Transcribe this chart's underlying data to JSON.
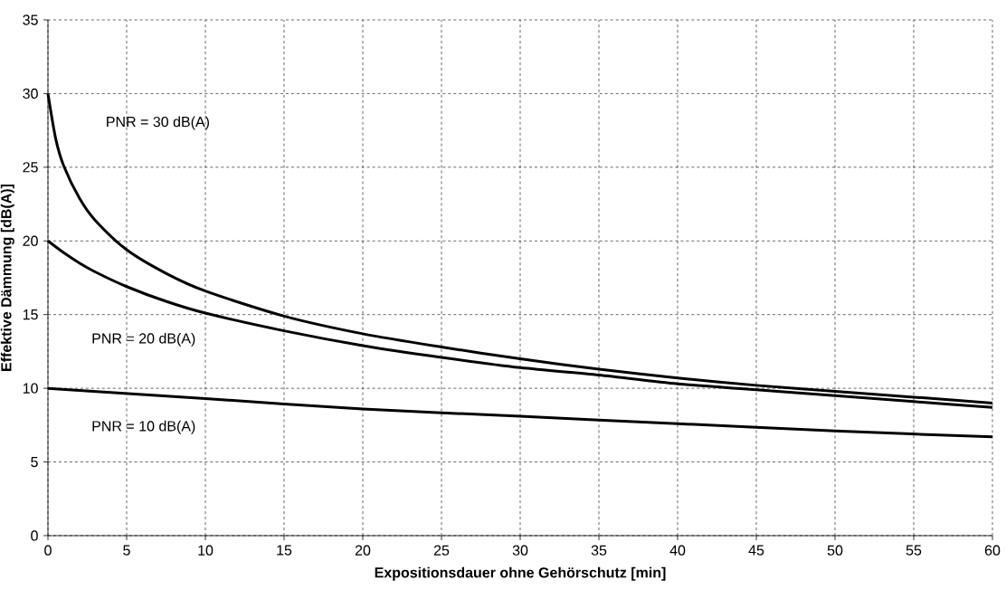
{
  "chart_data": {
    "type": "line",
    "xlabel": "Expositionsdauer ohne Gehörschutz [min]",
    "ylabel": "Effektive Dämmung [dB(A)]",
    "xlim": [
      0,
      60
    ],
    "ylim": [
      0,
      35
    ],
    "xticks": [
      0,
      5,
      10,
      15,
      20,
      25,
      30,
      35,
      40,
      45,
      50,
      55,
      60
    ],
    "yticks": [
      0,
      5,
      10,
      15,
      20,
      25,
      30,
      35
    ],
    "grid": true,
    "marker": "none",
    "line_style": "solid",
    "series": [
      {
        "color": "#000000",
        "x": [
          0,
          0.5,
          1,
          2,
          3,
          5,
          7.5,
          10,
          15,
          20,
          25,
          30,
          35,
          40,
          45,
          50,
          55,
          60
        ],
        "values": [
          30,
          26.9,
          25.1,
          22.9,
          21.4,
          19.4,
          17.8,
          16.6,
          14.9,
          13.7,
          12.8,
          12.0,
          11.3,
          10.7,
          10.2,
          9.8,
          9.4,
          9.0
        ]
      },
      {
        "color": "#000000",
        "x": [
          0,
          1,
          2,
          3,
          5,
          7.5,
          10,
          15,
          20,
          25,
          30,
          35,
          40,
          45,
          50,
          55,
          60
        ],
        "values": [
          20,
          19.2,
          18.5,
          17.9,
          16.9,
          15.9,
          15.1,
          13.9,
          12.9,
          12.1,
          11.4,
          10.9,
          10.3,
          9.9,
          9.5,
          9.1,
          8.7
        ]
      },
      {
        "color": "#000000",
        "x": [
          0,
          10,
          20,
          30,
          40,
          50,
          60
        ],
        "values": [
          10,
          9.3,
          8.6,
          8.1,
          7.6,
          7.1,
          6.7
        ]
      }
    ],
    "annotations": [
      "PNR = 30 dB(A)",
      "PNR = 20 dB(A)",
      "PNR = 10 dB(A)"
    ]
  }
}
